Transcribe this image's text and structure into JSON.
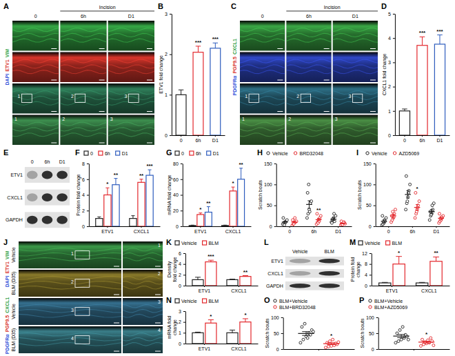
{
  "chart_data": [
    {
      "panel": "B",
      "type": "bar",
      "y_label": "ETV1 fold change",
      "categories": [
        "0",
        "6h",
        "D1"
      ],
      "series": [
        {
          "values": [
            1.0,
            2.05,
            2.15
          ],
          "errors": [
            0.12,
            0.15,
            0.13
          ],
          "significance": [
            null,
            "***",
            "***"
          ],
          "colors": [
            "#222222",
            "#e3262b",
            "#2c5bbd"
          ]
        }
      ],
      "ylim": [
        0,
        3
      ],
      "yticks": [
        0,
        1,
        2,
        3
      ]
    },
    {
      "panel": "D",
      "type": "bar",
      "y_label": "CXCL1 fold change",
      "categories": [
        "0",
        "6h",
        "D1"
      ],
      "series": [
        {
          "values": [
            1.0,
            3.7,
            3.75
          ],
          "errors": [
            0.08,
            0.35,
            0.38
          ],
          "significance": [
            null,
            "***",
            "***"
          ],
          "colors": [
            "#222222",
            "#e3262b",
            "#2c5bbd"
          ]
        }
      ],
      "ylim": [
        0,
        5
      ],
      "yticks": [
        0,
        1,
        2,
        3,
        4,
        5
      ]
    },
    {
      "panel": "F",
      "type": "bar",
      "y_label": "Protein fold change",
      "categories": [
        "ETV1",
        "CXCL1"
      ],
      "legend": "top",
      "series": [
        {
          "name": "0",
          "color": "#222222",
          "values": [
            1.0,
            1.0
          ],
          "errors": [
            0.2,
            0.35
          ],
          "significance": [
            null,
            null
          ]
        },
        {
          "name": "6h",
          "color": "#e3262b",
          "values": [
            4.0,
            5.6
          ],
          "errors": [
            0.9,
            0.4
          ],
          "significance": [
            "*",
            "**"
          ]
        },
        {
          "name": "D1",
          "color": "#2c5bbd",
          "values": [
            5.3,
            6.5
          ],
          "errors": [
            0.8,
            0.7
          ],
          "significance": [
            "**",
            "***"
          ]
        }
      ],
      "ylim": [
        0,
        8
      ],
      "yticks": [
        0,
        2,
        4,
        6,
        8
      ]
    },
    {
      "panel": "G",
      "type": "bar",
      "y_label": "mRNA fold change",
      "categories": [
        "ETV1",
        "CXCL1"
      ],
      "legend": "top",
      "series": [
        {
          "name": "0",
          "color": "#222222",
          "values": [
            1,
            1
          ],
          "errors": [
            0.5,
            0.5
          ],
          "significance": [
            null,
            null
          ]
        },
        {
          "name": "6h",
          "color": "#e3262b",
          "values": [
            15,
            45
          ],
          "errors": [
            2,
            5
          ],
          "significance": [
            "*",
            "*"
          ]
        },
        {
          "name": "D1",
          "color": "#2c5bbd",
          "values": [
            18,
            60
          ],
          "errors": [
            7,
            14
          ],
          "significance": [
            "**",
            "**"
          ]
        }
      ],
      "ylim": [
        0,
        80
      ],
      "yticks": [
        0,
        20,
        40,
        60,
        80
      ]
    },
    {
      "panel": "H",
      "type": "dot_plot",
      "y_label": "Scratch bouts",
      "categories": [
        "0",
        "6h",
        "D1"
      ],
      "legend": "top",
      "series": [
        {
          "name": "Vehicle",
          "color": "#222222",
          "marker": "open_circle",
          "points": [
            [
              5,
              8,
              10,
              12,
              15,
              20,
              3,
              9
            ],
            [
              20,
              30,
              40,
              55,
              60,
              80,
              100,
              35
            ],
            [
              10,
              15,
              20,
              12,
              25,
              8,
              18,
              30
            ]
          ],
          "values": [
            10,
            52,
            17
          ],
          "errors": [
            2,
            9,
            3
          ],
          "significance": [
            null,
            null,
            null
          ]
        },
        {
          "name": "BRD32048",
          "color": "#e3262b",
          "marker": "open_circle",
          "points": [
            [
              2,
              5,
              8,
              10,
              12,
              15,
              6,
              20
            ],
            [
              5,
              10,
              15,
              20,
              25,
              30,
              8,
              12
            ],
            [
              3,
              5,
              8,
              10,
              6,
              12,
              4,
              9
            ]
          ],
          "values": [
            10,
            16,
            7
          ],
          "errors": [
            2,
            3,
            1
          ],
          "significance": [
            null,
            "**",
            null
          ]
        }
      ],
      "ylim": [
        0,
        150
      ],
      "yticks": [
        0,
        50,
        100,
        150
      ]
    },
    {
      "panel": "I",
      "type": "dot_plot",
      "y_label": "Scratch bouts",
      "categories": [
        "0",
        "6h",
        "D1"
      ],
      "legend": "top",
      "series": [
        {
          "name": "Vehicle",
          "color": "#222222",
          "marker": "open_circle",
          "points": [
            [
              3,
              5,
              8,
              12,
              20,
              25,
              10,
              15
            ],
            [
              40,
              55,
              70,
              85,
              100,
              120,
              60,
              80
            ],
            [
              15,
              25,
              30,
              40,
              55,
              35,
              28,
              50
            ]
          ],
          "values": [
            12,
            76,
            35
          ],
          "errors": [
            3,
            9,
            5
          ],
          "significance": [
            null,
            null,
            null
          ]
        },
        {
          "name": "AZD5069",
          "color": "#e3262b",
          "marker": "open_circle",
          "points": [
            [
              10,
              15,
              20,
              30,
              40,
              25,
              35,
              22
            ],
            [
              20,
              30,
              40,
              50,
              60,
              80,
              35,
              45
            ],
            [
              8,
              12,
              15,
              20,
              25,
              30,
              18,
              22
            ]
          ],
          "values": [
            25,
            45,
            19
          ],
          "errors": [
            4,
            7,
            3
          ],
          "significance": [
            null,
            "*",
            null
          ]
        }
      ],
      "ylim": [
        0,
        150
      ],
      "yticks": [
        0,
        50,
        100,
        150
      ]
    },
    {
      "panel": "K",
      "type": "bar",
      "y_label": "Density fold change",
      "categories": [
        "ETV1",
        "CXCL1"
      ],
      "legend": "top",
      "series": [
        {
          "name": "Vehicle",
          "color": "#222222",
          "values": [
            1.1,
            1.1
          ],
          "errors": [
            0.45,
            0.1
          ],
          "significance": [
            null,
            null
          ]
        },
        {
          "name": "BLM",
          "color": "#e3262b",
          "values": [
            4.4,
            1.7
          ],
          "errors": [
            0.3,
            0.15
          ],
          "significance": [
            "***",
            "**"
          ]
        }
      ],
      "ylim": [
        0,
        6
      ],
      "yticks": [
        0,
        2,
        4,
        6
      ]
    },
    {
      "panel": "M",
      "type": "bar",
      "y_label": "Protein fold change",
      "categories": [
        "ETV1",
        "CXCL1"
      ],
      "legend": "top",
      "series": [
        {
          "name": "Vehicle",
          "color": "#222222",
          "values": [
            1,
            1
          ],
          "errors": [
            0.2,
            0.2
          ],
          "significance": [
            null,
            null
          ]
        },
        {
          "name": "BLM",
          "color": "#e3262b",
          "values": [
            8,
            9
          ],
          "errors": [
            2.8,
            1.6
          ],
          "significance": [
            "*",
            "**"
          ]
        }
      ],
      "ylim": [
        0,
        12
      ],
      "yticks": [
        0,
        4,
        8,
        12
      ]
    },
    {
      "panel": "N",
      "type": "bar",
      "y_label": "mRNA fold change",
      "categories": [
        "ETV1",
        "CXCL1"
      ],
      "legend": "top",
      "series": [
        {
          "name": "Vehicle",
          "color": "#222222",
          "values": [
            1,
            1
          ],
          "errors": [
            0.06,
            0.25
          ],
          "significance": [
            null,
            null
          ]
        },
        {
          "name": "BLM",
          "color": "#e3262b",
          "values": [
            1.9,
            2.0
          ],
          "errors": [
            0.3,
            0.3
          ],
          "significance": [
            "*",
            "*"
          ]
        }
      ],
      "ylim": [
        0,
        3
      ],
      "yticks": [
        0,
        1,
        2,
        3
      ]
    },
    {
      "panel": "O",
      "type": "dot_plot",
      "y_label": "Scratch bouts",
      "categories": [
        null
      ],
      "legend": "top",
      "series": [
        {
          "name": "BLM+Vehicle",
          "color": "#222222",
          "marker": "open_circle",
          "points": [
            [
              20,
              30,
              40,
              50,
              60,
              70,
              80,
              35,
              45,
              55
            ]
          ],
          "values": [
            49
          ],
          "errors": [
            6
          ],
          "significance": [
            null
          ]
        },
        {
          "name": "BLM+BRD32048",
          "color": "#e3262b",
          "marker": "open_circle",
          "points": [
            [
              5,
              8,
              10,
              12,
              15,
              20,
              25,
              30,
              18,
              22
            ]
          ],
          "values": [
            17
          ],
          "errors": [
            3
          ],
          "significance": [
            "*"
          ]
        }
      ],
      "ylim": [
        0,
        100
      ],
      "yticks": [
        0,
        50,
        100
      ]
    },
    {
      "panel": "P",
      "type": "dot_plot",
      "y_label": "Scratch bouts",
      "categories": [
        null
      ],
      "legend": "top",
      "series": [
        {
          "name": "BLM+Vehicle",
          "color": "#222222",
          "marker": "open_circle",
          "points": [
            [
              20,
              25,
              30,
              35,
              40,
              50,
              60,
              70,
              45,
              30
            ]
          ],
          "values": [
            41
          ],
          "errors": [
            5
          ],
          "significance": [
            null
          ]
        },
        {
          "name": "BLM+AZD5069",
          "color": "#e3262b",
          "marker": "open_circle",
          "points": [
            [
              10,
              15,
              18,
              20,
              25,
              30,
              22,
              28,
              35,
              12
            ]
          ],
          "values": [
            22
          ],
          "errors": [
            3
          ],
          "significance": [
            "*"
          ]
        }
      ],
      "ylim": [
        0,
        100
      ],
      "yticks": [
        0,
        50,
        100
      ]
    }
  ],
  "image_panels": [
    {
      "panel": "A",
      "header": "Incision",
      "columns": [
        "0",
        "6h",
        "D1"
      ],
      "stain_labels": [
        {
          "text": "DAPI",
          "color": "#2f4fd8"
        },
        {
          "text": "ETV1",
          "color": "#d8352b"
        },
        {
          "text": "VIM",
          "color": "#2e9e3f"
        }
      ],
      "insets": [
        "1",
        "2",
        "3"
      ]
    },
    {
      "panel": "C",
      "header": "Incision",
      "columns": [
        "0",
        "6h",
        "D1"
      ],
      "stain_labels": [
        {
          "text": "PDGFRα",
          "color": "#2f4fd8"
        },
        {
          "text": "PGP9.5",
          "color": "#d8352b"
        },
        {
          "text": "CXCL1",
          "color": "#2e9e3f"
        }
      ],
      "insets": [
        "1",
        "2",
        "3"
      ]
    },
    {
      "panel": "E",
      "lanes": [
        "0",
        "6h",
        "D1"
      ],
      "bands": [
        "ETV1",
        "CXCL1",
        "GAPDH"
      ]
    },
    {
      "panel": "J",
      "rows": [
        "Vehicle",
        "BLM (D35)",
        "Vehicle",
        "BLM (D35)"
      ],
      "stain_groups": [
        [
          {
            "text": "DAPI",
            "color": "#2f4fd8"
          },
          {
            "text": "ETV1",
            "color": "#d8352b"
          },
          {
            "text": "VIM",
            "color": "#2e9e3f"
          }
        ],
        [
          {
            "text": "PDGFRα",
            "color": "#2f4fd8"
          },
          {
            "text": "PGP9.5",
            "color": "#d8352b"
          },
          {
            "text": "CXCL1",
            "color": "#2e9e3f"
          }
        ]
      ],
      "insets": [
        "1",
        "2",
        "3",
        "4"
      ]
    },
    {
      "panel": "L",
      "lanes": [
        "Vehicle",
        "BLM"
      ],
      "bands": [
        "ETV1",
        "CXCL1",
        "GAPDH"
      ]
    }
  ]
}
